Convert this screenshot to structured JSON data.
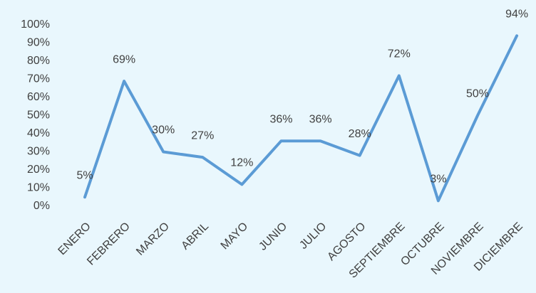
{
  "chart_data": {
    "type": "line",
    "categories": [
      "ENERO",
      "FEBRERO",
      "MARZO",
      "ABRIL",
      "MAYO",
      "JUNIO",
      "JULIO",
      "AGOSTO",
      "SEPTIEMBRE",
      "OCTUBRE",
      "NOVIEMBRE",
      "DICIEMBRE"
    ],
    "series": [
      {
        "color": "#5b9bd5",
        "values": [
          5,
          69,
          30,
          27,
          12,
          36,
          36,
          28,
          72,
          3,
          50,
          94
        ],
        "value_labels": [
          "5%",
          "69%",
          "30%",
          "27%",
          "12%",
          "36%",
          "36%",
          "28%",
          "72%",
          "3%",
          "50%",
          "94%"
        ]
      }
    ],
    "ylim": [
      0,
      100
    ],
    "yticks": [
      {
        "value": 0,
        "label": "0%"
      },
      {
        "value": 10,
        "label": "10%"
      },
      {
        "value": 20,
        "label": "20%"
      },
      {
        "value": 30,
        "label": "30%"
      },
      {
        "value": 40,
        "label": "40%"
      },
      {
        "value": 50,
        "label": "50%"
      },
      {
        "value": 60,
        "label": "60%"
      },
      {
        "value": 70,
        "label": "70%"
      },
      {
        "value": 80,
        "label": "80%"
      },
      {
        "value": 90,
        "label": "90%"
      },
      {
        "value": 100,
        "label": "100%"
      }
    ],
    "grid": false
  }
}
